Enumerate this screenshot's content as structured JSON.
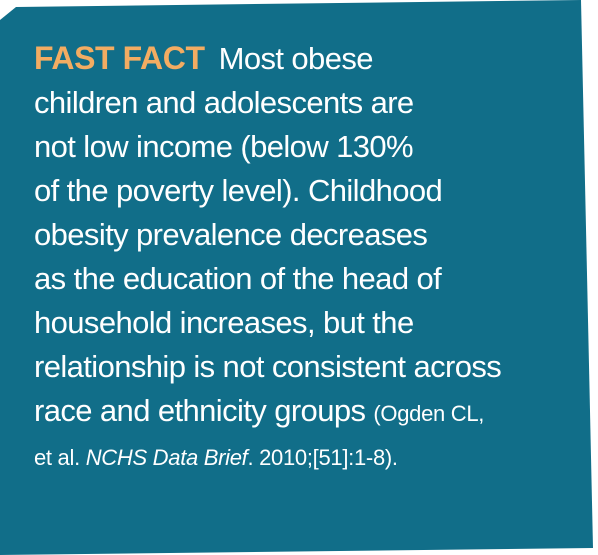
{
  "fact": {
    "label": "FAST FACT",
    "lines": [
      "Most obese",
      "children and adolescents are",
      "not low income (below 130%",
      "of the poverty level). Childhood",
      "obesity prevalence decreases",
      "as the education of the head of",
      "household increases, but the",
      "relationship is not consistent across",
      "race and ethnicity groups"
    ],
    "citation": {
      "open": "(Ogden CL,",
      "prefix": "et al. ",
      "journal": "NCHS Data Brief",
      "suffix": ". 2010;[51]:1-8)."
    }
  },
  "colors": {
    "background": "#116e89",
    "label": "#f3ac62",
    "text": "#ffffff"
  }
}
